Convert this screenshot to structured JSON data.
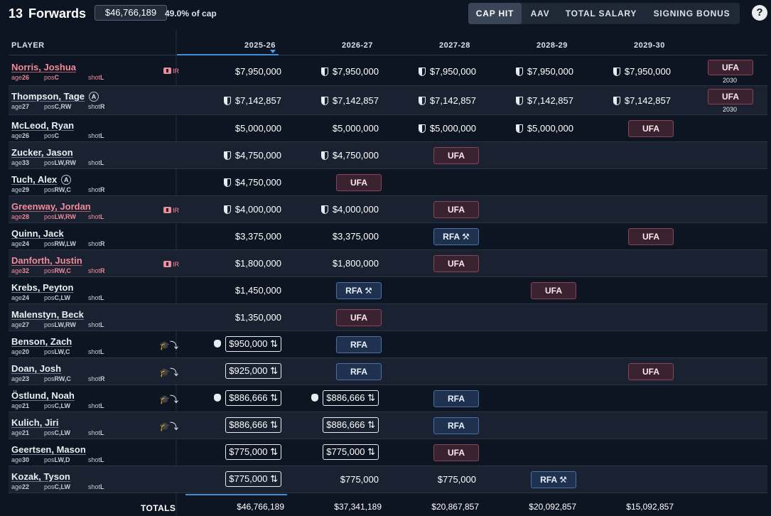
{
  "header": {
    "count": "13",
    "title": "Forwards",
    "cap_total": "$46,766,189",
    "cap_pct": "49.0% of cap",
    "tabs": [
      "CAP HIT",
      "AAV",
      "TOTAL SALARY",
      "SIGNING BONUS"
    ],
    "active_tab": "CAP HIT",
    "help": "?"
  },
  "columns": {
    "player": "PLAYER",
    "seasons": [
      "2025-26",
      "2026-27",
      "2027-28",
      "2028-29",
      "2029-30"
    ]
  },
  "meta_labels": {
    "age": "age",
    "pos": "pos",
    "shot": "shot"
  },
  "ir_label": "IR",
  "elc_icon": "graduation-cap-icon",
  "players": [
    {
      "name": "Norris, Joshua",
      "ir": true,
      "a": false,
      "elc": false,
      "age": "26",
      "pos": "C",
      "shot": "L",
      "cells": [
        {
          "v": "$7,950,000"
        },
        {
          "v": "$7,950,000",
          "shield": true
        },
        {
          "v": "$7,950,000",
          "shield": true
        },
        {
          "v": "$7,950,000",
          "shield": true
        },
        {
          "v": "$7,950,000",
          "shield": true
        },
        {
          "pill": "UFA",
          "year": "2030"
        }
      ]
    },
    {
      "name": "Thompson, Tage",
      "ir": false,
      "a": true,
      "elc": false,
      "age": "27",
      "pos": "C,RW",
      "shot": "R",
      "cells": [
        {
          "v": "$7,142,857",
          "shield": true
        },
        {
          "v": "$7,142,857",
          "shield": true
        },
        {
          "v": "$7,142,857",
          "shield": true
        },
        {
          "v": "$7,142,857",
          "shield": true
        },
        {
          "v": "$7,142,857",
          "shield": true
        },
        {
          "pill": "UFA",
          "year": "2030"
        }
      ]
    },
    {
      "name": "McLeod, Ryan",
      "ir": false,
      "a": false,
      "elc": false,
      "age": "26",
      "pos": "C",
      "shot": "L",
      "cells": [
        {
          "v": "$5,000,000"
        },
        {
          "v": "$5,000,000"
        },
        {
          "v": "$5,000,000",
          "shield": true
        },
        {
          "v": "$5,000,000",
          "shield": true
        },
        {
          "pill": "UFA"
        }
      ]
    },
    {
      "name": "Zucker, Jason",
      "ir": false,
      "a": false,
      "elc": false,
      "age": "33",
      "pos": "LW,RW",
      "shot": "L",
      "cells": [
        {
          "v": "$4,750,000",
          "shield": true
        },
        {
          "v": "$4,750,000",
          "shield": true
        },
        {
          "pill": "UFA"
        }
      ]
    },
    {
      "name": "Tuch, Alex",
      "ir": false,
      "a": true,
      "elc": false,
      "age": "29",
      "pos": "RW,C",
      "shot": "R",
      "cells": [
        {
          "v": "$4,750,000",
          "shield": true
        },
        {
          "pill": "UFA"
        }
      ]
    },
    {
      "name": "Greenway, Jordan",
      "ir": true,
      "a": false,
      "elc": false,
      "age": "28",
      "pos": "LW,RW",
      "shot": "L",
      "cells": [
        {
          "v": "$4,000,000",
          "shield": true
        },
        {
          "v": "$4,000,000",
          "shield": true
        },
        {
          "pill": "UFA"
        }
      ]
    },
    {
      "name": "Quinn, Jack",
      "ir": false,
      "a": false,
      "elc": false,
      "age": "24",
      "pos": "RW,LW",
      "shot": "R",
      "cells": [
        {
          "v": "$3,375,000"
        },
        {
          "v": "$3,375,000"
        },
        {
          "pill": "RFA",
          "arb": true
        },
        {},
        {
          "pill": "UFA"
        }
      ]
    },
    {
      "name": "Danforth, Justin",
      "ir": true,
      "a": false,
      "elc": false,
      "age": "32",
      "pos": "RW,C",
      "shot": "R",
      "cells": [
        {
          "v": "$1,800,000"
        },
        {
          "v": "$1,800,000"
        },
        {
          "pill": "UFA"
        }
      ]
    },
    {
      "name": "Krebs, Peyton",
      "ir": false,
      "a": false,
      "elc": false,
      "age": "24",
      "pos": "C,LW",
      "shot": "L",
      "cells": [
        {
          "v": "$1,450,000"
        },
        {
          "pill": "RFA",
          "arb": true
        },
        {},
        {
          "pill": "UFA"
        }
      ]
    },
    {
      "name": "Malenstyn, Beck",
      "ir": false,
      "a": false,
      "elc": false,
      "age": "27",
      "pos": "LW,RW",
      "shot": "L",
      "cells": [
        {
          "v": "$1,350,000"
        },
        {
          "pill": "UFA"
        }
      ]
    },
    {
      "name": "Benson, Zach",
      "ir": false,
      "a": false,
      "elc": true,
      "age": "20",
      "pos": "LW,C",
      "shot": "L",
      "cells": [
        {
          "v": "$950,000",
          "boxed": true,
          "bag": true
        },
        {
          "pill": "RFA"
        }
      ]
    },
    {
      "name": "Doan, Josh",
      "ir": false,
      "a": false,
      "elc": true,
      "age": "23",
      "pos": "RW,C",
      "shot": "R",
      "cells": [
        {
          "v": "$925,000",
          "boxed": true
        },
        {
          "pill": "RFA"
        },
        {},
        {},
        {
          "pill": "UFA"
        }
      ]
    },
    {
      "name": "Östlund, Noah",
      "ir": false,
      "a": false,
      "elc": true,
      "age": "21",
      "pos": "C,LW",
      "shot": "L",
      "cells": [
        {
          "v": "$886,666",
          "boxed": true,
          "bag": true
        },
        {
          "v": "$886,666",
          "boxed": true,
          "bag": true
        },
        {
          "pill": "RFA"
        }
      ]
    },
    {
      "name": "Kulich, Jiri",
      "ir": false,
      "a": false,
      "elc": true,
      "age": "21",
      "pos": "C,LW",
      "shot": "L",
      "cells": [
        {
          "v": "$886,666",
          "boxed": true
        },
        {
          "v": "$886,666",
          "boxed": true
        },
        {
          "pill": "RFA"
        }
      ]
    },
    {
      "name": "Geertsen, Mason",
      "ir": false,
      "a": false,
      "elc": false,
      "age": "30",
      "pos": "LW,D",
      "shot": "L",
      "cells": [
        {
          "v": "$775,000",
          "boxed": true
        },
        {
          "v": "$775,000",
          "boxed": true
        },
        {
          "pill": "UFA"
        }
      ]
    },
    {
      "name": "Kozak, Tyson",
      "ir": false,
      "a": false,
      "elc": false,
      "age": "22",
      "pos": "C,LW",
      "shot": "L",
      "cells": [
        {
          "v": "$775,000",
          "boxed": true
        },
        {
          "v": "$775,000"
        },
        {
          "v": "$775,000"
        },
        {
          "pill": "RFA",
          "arb": true
        }
      ]
    }
  ],
  "totals": {
    "label": "TOTALS",
    "values": [
      "$46,766,189",
      "$37,341,189",
      "$20,867,857",
      "$20,092,857",
      "$15,092,857"
    ]
  },
  "colors": {
    "background": "#0e1522",
    "ufa": "#3b2230",
    "rfa": "#1e3250",
    "accent": "#3d8fd6",
    "ir": "#f08b9b"
  }
}
